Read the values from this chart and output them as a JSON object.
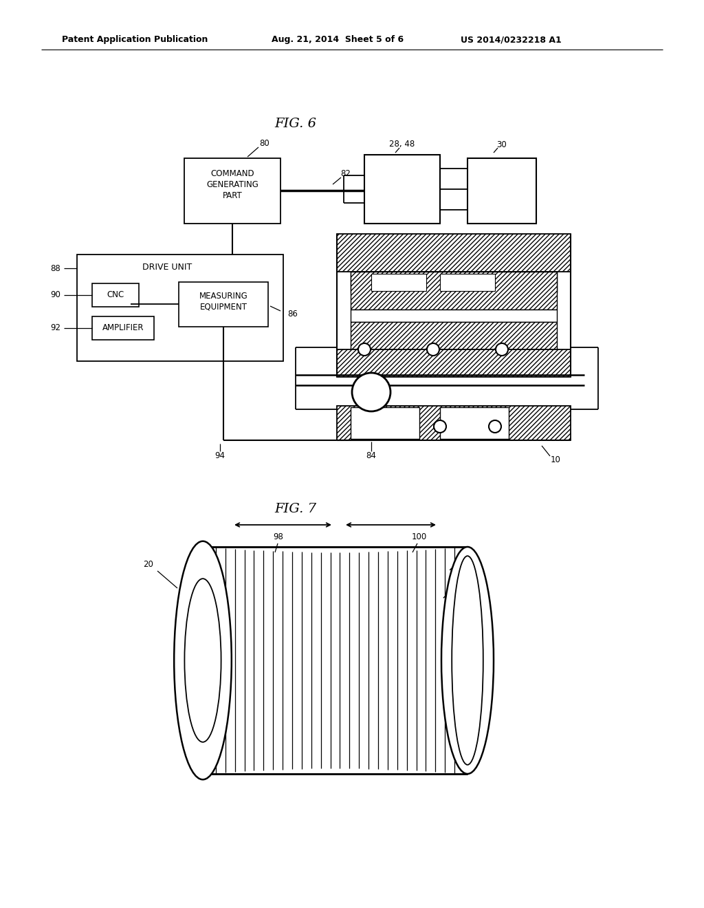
{
  "bg_color": "#ffffff",
  "page_width": 10.24,
  "page_height": 13.2,
  "header_left": "Patent Application Publication",
  "header_mid": "Aug. 21, 2014  Sheet 5 of 6",
  "header_right": "US 2014/0232218 A1",
  "fig6_title": "FIG. 6",
  "fig7_title": "FIG. 7",
  "lc": "#000000",
  "tc": "#000000"
}
